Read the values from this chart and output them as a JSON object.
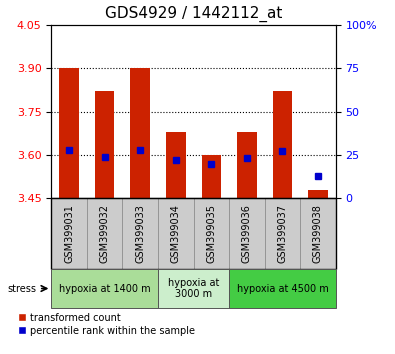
{
  "title": "GDS4929 / 1442112_at",
  "samples": [
    "GSM399031",
    "GSM399032",
    "GSM399033",
    "GSM399034",
    "GSM399035",
    "GSM399036",
    "GSM399037",
    "GSM399038"
  ],
  "bar_bottoms": [
    3.45,
    3.45,
    3.45,
    3.45,
    3.45,
    3.45,
    3.45,
    3.45
  ],
  "bar_tops": [
    3.9,
    3.82,
    3.9,
    3.68,
    3.6,
    3.68,
    3.82,
    3.48
  ],
  "percentile_values": [
    28,
    24,
    28,
    22,
    20,
    23,
    27,
    13
  ],
  "bar_color": "#cc2200",
  "dot_color": "#0000cc",
  "ylim_left": [
    3.45,
    4.05
  ],
  "ylim_right": [
    0,
    100
  ],
  "yticks_left": [
    3.45,
    3.6,
    3.75,
    3.9,
    4.05
  ],
  "yticks_right": [
    0,
    25,
    50,
    75,
    100
  ],
  "ytick_right_labels": [
    "0",
    "25",
    "50",
    "75",
    "100%"
  ],
  "grid_lines": [
    3.6,
    3.75,
    3.9
  ],
  "stress_label": "stress",
  "groups": [
    {
      "label": "hypoxia at 1400 m",
      "indices": [
        0,
        1,
        2
      ],
      "color": "#aadd99"
    },
    {
      "label": "hypoxia at\n3000 m",
      "indices": [
        3,
        4
      ],
      "color": "#cceecc"
    },
    {
      "label": "hypoxia at 4500 m",
      "indices": [
        5,
        6,
        7
      ],
      "color": "#44cc44"
    }
  ],
  "legend_items": [
    {
      "label": "transformed count",
      "color": "#cc2200"
    },
    {
      "label": "percentile rank within the sample",
      "color": "#0000cc"
    }
  ],
  "title_fontsize": 11,
  "tick_fontsize": 8,
  "label_fontsize": 7,
  "bar_width": 0.55
}
